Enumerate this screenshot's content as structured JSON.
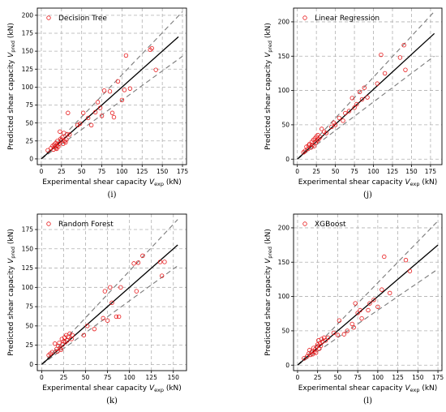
{
  "chart_data": [
    {
      "type": "scatter",
      "caption": "(i)",
      "legend": "Decision Tree",
      "xlabel": "Experimental shear capacity",
      "xlabel_var": "V",
      "xlabel_sub": "exp",
      "xlabel_unit": "(kN)",
      "ylabel": "Predicted shear capacity",
      "ylabel_var": "V",
      "ylabel_sub": "pred",
      "ylabel_unit": "(kN)",
      "xlim": [
        -5,
        180
      ],
      "ylim": [
        -8,
        210
      ],
      "xticks": [
        0,
        25,
        50,
        75,
        100,
        125,
        150,
        175
      ],
      "yticks": [
        0,
        25,
        50,
        75,
        100,
        125,
        150,
        175,
        200
      ],
      "fit_line": [
        [
          0,
          0
        ],
        [
          170,
          170
        ]
      ],
      "bounds": [
        [
          [
            0,
            0
          ],
          [
            175,
            205
          ]
        ],
        [
          [
            0,
            0
          ],
          [
            175,
            143
          ]
        ]
      ],
      "points": [
        [
          8,
          12
        ],
        [
          12,
          15
        ],
        [
          14,
          18
        ],
        [
          15,
          13
        ],
        [
          16,
          20
        ],
        [
          17,
          17
        ],
        [
          18,
          15
        ],
        [
          18,
          22
        ],
        [
          19,
          14
        ],
        [
          20,
          19
        ],
        [
          20,
          25
        ],
        [
          21,
          17
        ],
        [
          22,
          21
        ],
        [
          23,
          38
        ],
        [
          24,
          28
        ],
        [
          25,
          26
        ],
        [
          26,
          30
        ],
        [
          27,
          21
        ],
        [
          28,
          36
        ],
        [
          29,
          25
        ],
        [
          30,
          23
        ],
        [
          31,
          27
        ],
        [
          32,
          34
        ],
        [
          33,
          64
        ],
        [
          35,
          34
        ],
        [
          45,
          47
        ],
        [
          48,
          49
        ],
        [
          52,
          64
        ],
        [
          58,
          57
        ],
        [
          62,
          47
        ],
        [
          67,
          65
        ],
        [
          70,
          79
        ],
        [
          73,
          71
        ],
        [
          75,
          60
        ],
        [
          78,
          95
        ],
        [
          85,
          94
        ],
        [
          88,
          64
        ],
        [
          90,
          58
        ],
        [
          95,
          108
        ],
        [
          100,
          82
        ],
        [
          103,
          96
        ],
        [
          105,
          144
        ],
        [
          110,
          98
        ],
        [
          135,
          152
        ],
        [
          137,
          154
        ],
        [
          142,
          124
        ]
      ]
    },
    {
      "type": "scatter",
      "caption": "(j)",
      "legend": "Linear Regression",
      "xlabel": "Experimental shear capacity",
      "xlabel_var": "V",
      "xlabel_sub": "exp",
      "xlabel_unit": "(kN)",
      "ylabel": "Predicted shear capacity",
      "ylabel_var": "V",
      "ylabel_sub": "pred",
      "ylabel_unit": "(kN)",
      "xlim": [
        -5,
        190
      ],
      "ylim": [
        -8,
        220
      ],
      "xticks": [
        0,
        25,
        50,
        75,
        100,
        125,
        150,
        175
      ],
      "yticks": [
        0,
        50,
        100,
        150,
        200
      ],
      "fit_line": [
        [
          0,
          0
        ],
        [
          180,
          183
        ]
      ],
      "bounds": [
        [
          [
            0,
            0
          ],
          [
            180,
            215
          ]
        ],
        [
          [
            0,
            0
          ],
          [
            180,
            150
          ]
        ]
      ],
      "points": [
        [
          8,
          10
        ],
        [
          10,
          12
        ],
        [
          12,
          18
        ],
        [
          14,
          15
        ],
        [
          15,
          20
        ],
        [
          16,
          22
        ],
        [
          18,
          17
        ],
        [
          19,
          25
        ],
        [
          20,
          21
        ],
        [
          21,
          28
        ],
        [
          22,
          19
        ],
        [
          23,
          30
        ],
        [
          24,
          24
        ],
        [
          25,
          33
        ],
        [
          26,
          27
        ],
        [
          27,
          35
        ],
        [
          28,
          29
        ],
        [
          30,
          32
        ],
        [
          32,
          44
        ],
        [
          35,
          40
        ],
        [
          38,
          38
        ],
        [
          45,
          47
        ],
        [
          48,
          53
        ],
        [
          50,
          50
        ],
        [
          55,
          60
        ],
        [
          60,
          56
        ],
        [
          63,
          67
        ],
        [
          68,
          70
        ],
        [
          72,
          89
        ],
        [
          75,
          75
        ],
        [
          78,
          80
        ],
        [
          82,
          98
        ],
        [
          85,
          87
        ],
        [
          88,
          104
        ],
        [
          92,
          90
        ],
        [
          105,
          110
        ],
        [
          110,
          152
        ],
        [
          115,
          125
        ],
        [
          135,
          148
        ],
        [
          140,
          166
        ],
        [
          142,
          130
        ]
      ]
    },
    {
      "type": "scatter",
      "caption": "(k)",
      "legend": "Random Forest",
      "xlabel": "Experimental shear capacity",
      "xlabel_var": "V",
      "xlabel_sub": "exp",
      "xlabel_unit": "(kN)",
      "ylabel": "Predicted shear capacity",
      "ylabel_var": "V",
      "ylabel_sub": "pred",
      "ylabel_unit": "(kN)",
      "xlim": [
        -5,
        165
      ],
      "ylim": [
        -8,
        195
      ],
      "xticks": [
        0,
        25,
        50,
        75,
        100,
        125,
        150
      ],
      "yticks": [
        0,
        25,
        50,
        75,
        100,
        125,
        150,
        175
      ],
      "fit_line": [
        [
          0,
          0
        ],
        [
          155,
          155
        ]
      ],
      "bounds": [
        [
          [
            0,
            0
          ],
          [
            155,
            188
          ]
        ],
        [
          [
            0,
            0
          ],
          [
            155,
            128
          ]
        ]
      ],
      "points": [
        [
          8,
          12
        ],
        [
          10,
          14
        ],
        [
          12,
          16
        ],
        [
          15,
          27
        ],
        [
          17,
          20
        ],
        [
          18,
          17
        ],
        [
          19,
          24
        ],
        [
          20,
          28
        ],
        [
          21,
          21
        ],
        [
          22,
          19
        ],
        [
          23,
          33
        ],
        [
          24,
          26
        ],
        [
          25,
          30
        ],
        [
          26,
          35
        ],
        [
          27,
          29
        ],
        [
          28,
          38
        ],
        [
          29,
          31
        ],
        [
          30,
          36
        ],
        [
          32,
          40
        ],
        [
          34,
          33
        ],
        [
          35,
          38
        ],
        [
          48,
          38
        ],
        [
          52,
          50
        ],
        [
          60,
          46
        ],
        [
          70,
          60
        ],
        [
          72,
          95
        ],
        [
          75,
          57
        ],
        [
          78,
          100
        ],
        [
          80,
          80
        ],
        [
          85,
          62
        ],
        [
          88,
          62
        ],
        [
          90,
          100
        ],
        [
          105,
          131
        ],
        [
          108,
          95
        ],
        [
          110,
          132
        ],
        [
          115,
          141
        ],
        [
          135,
          133
        ],
        [
          137,
          115
        ],
        [
          140,
          133
        ]
      ]
    },
    {
      "type": "scatter",
      "caption": "(l)",
      "legend": "XGBoost",
      "xlabel": "Experimental shear capacity",
      "xlabel_var": "V",
      "xlabel_sub": "exp",
      "xlabel_unit": "(kN)",
      "ylabel": "Predicted shear capacity",
      "ylabel_var": "V",
      "ylabel_sub": "pred",
      "ylabel_unit": "(kN)",
      "xlim": [
        -5,
        180
      ],
      "ylim": [
        -8,
        220
      ],
      "xticks": [
        0,
        25,
        50,
        75,
        100,
        125,
        150,
        175
      ],
      "yticks": [
        0,
        50,
        100,
        150,
        200
      ],
      "fit_line": [
        [
          0,
          0
        ],
        [
          175,
          175
        ]
      ],
      "bounds": [
        [
          [
            0,
            0
          ],
          [
            175,
            210
          ]
        ],
        [
          [
            0,
            0
          ],
          [
            175,
            140
          ]
        ]
      ],
      "points": [
        [
          8,
          10
        ],
        [
          12,
          13
        ],
        [
          14,
          17
        ],
        [
          15,
          22
        ],
        [
          16,
          15
        ],
        [
          18,
          20
        ],
        [
          19,
          16
        ],
        [
          20,
          25
        ],
        [
          21,
          19
        ],
        [
          22,
          23
        ],
        [
          23,
          18
        ],
        [
          24,
          27
        ],
        [
          25,
          30
        ],
        [
          26,
          36
        ],
        [
          27,
          24
        ],
        [
          28,
          32
        ],
        [
          29,
          28
        ],
        [
          30,
          38
        ],
        [
          31,
          34
        ],
        [
          33,
          40
        ],
        [
          35,
          36
        ],
        [
          38,
          40
        ],
        [
          45,
          47
        ],
        [
          50,
          44
        ],
        [
          52,
          65
        ],
        [
          58,
          45
        ],
        [
          62,
          50
        ],
        [
          68,
          60
        ],
        [
          70,
          55
        ],
        [
          72,
          90
        ],
        [
          75,
          76
        ],
        [
          78,
          80
        ],
        [
          80,
          68
        ],
        [
          88,
          80
        ],
        [
          90,
          90
        ],
        [
          95,
          95
        ],
        [
          100,
          85
        ],
        [
          105,
          110
        ],
        [
          108,
          158
        ],
        [
          115,
          105
        ],
        [
          135,
          153
        ],
        [
          140,
          137
        ]
      ]
    }
  ]
}
